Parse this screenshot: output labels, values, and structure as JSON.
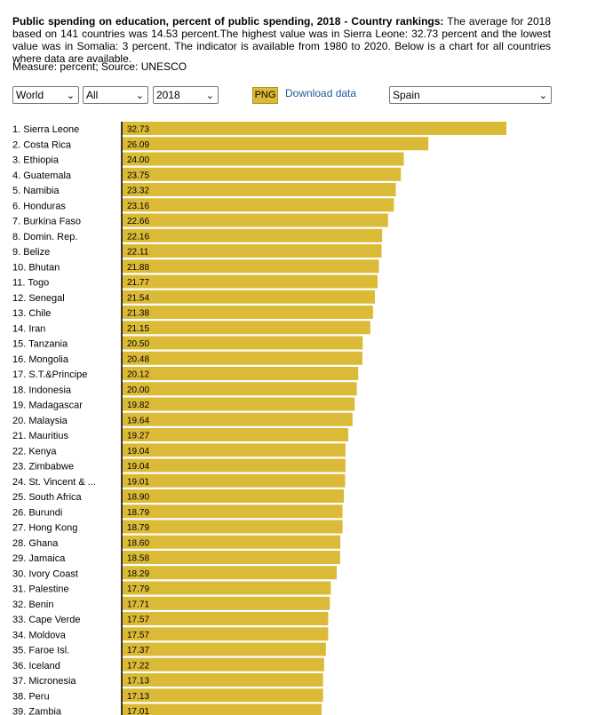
{
  "header": {
    "title": "Public spending on education, percent of public spending, 2018 - Country rankings:",
    "description": "The average for 2018 based on 141 countries was 14.53 percent.The highest value was in Sierra Leone: 32.73 percent and the lowest value was in Somalia: 3 percent. The indicator is available from 1980 to 2020. Below is a chart for all countries where data are available.",
    "measure": "Measure: percent; Source: UNESCO"
  },
  "controls": {
    "region": "World",
    "group": "All",
    "year": "2018",
    "png_label": "PNG",
    "download_label": "Download data",
    "country": "Spain"
  },
  "colors": {
    "bar": "#dbba37",
    "axis": "#000000",
    "link": "#1f5c99"
  },
  "chart_data": {
    "type": "bar",
    "orientation": "horizontal",
    "categories": [
      "1. Sierra Leone",
      "2. Costa Rica",
      "3. Ethiopia",
      "4. Guatemala",
      "5. Namibia",
      "6. Honduras",
      "7. Burkina Faso",
      "8. Domin. Rep.",
      "9. Belize",
      "10. Bhutan",
      "11. Togo",
      "12. Senegal",
      "13. Chile",
      "14. Iran",
      "15. Tanzania",
      "16. Mongolia",
      "17. S.T.&Principe",
      "18. Indonesia",
      "19. Madagascar",
      "20. Malaysia",
      "21. Mauritius",
      "22. Kenya",
      "23. Zimbabwe",
      "24. St. Vincent & ...",
      "25. South Africa",
      "26. Burundi",
      "27. Hong Kong",
      "28. Ghana",
      "29. Jamaica",
      "30. Ivory Coast",
      "31. Palestine",
      "32. Benin",
      "33. Cape Verde",
      "34. Moldova",
      "35. Faroe Isl.",
      "36. Iceland",
      "37. Micronesia",
      "38. Peru",
      "39. Zambia"
    ],
    "value_labels": [
      "32.73",
      "26.09",
      "24.00",
      "23.75",
      "23.32",
      "23.16",
      "22.66",
      "22.16",
      "22.11",
      "21.88",
      "21.77",
      "21.54",
      "21.38",
      "21.15",
      "20.50",
      "20.48",
      "20.12",
      "20.00",
      "19.82",
      "19.64",
      "19.27",
      "19.04",
      "19.04",
      "19.01",
      "18.90",
      "18.79",
      "18.79",
      "18.60",
      "18.58",
      "18.29",
      "17.79",
      "17.71",
      "17.57",
      "17.57",
      "17.37",
      "17.22",
      "17.13",
      "17.13",
      "17.01"
    ],
    "values": [
      32.73,
      26.09,
      24.0,
      23.75,
      23.32,
      23.16,
      22.66,
      22.16,
      22.11,
      21.88,
      21.77,
      21.54,
      21.38,
      21.15,
      20.5,
      20.48,
      20.12,
      20.0,
      19.82,
      19.64,
      19.27,
      19.04,
      19.04,
      19.01,
      18.9,
      18.79,
      18.79,
      18.6,
      18.58,
      18.29,
      17.79,
      17.71,
      17.57,
      17.57,
      17.37,
      17.22,
      17.13,
      17.13,
      17.01
    ],
    "xlim": [
      0,
      32.73
    ],
    "grid": false
  }
}
